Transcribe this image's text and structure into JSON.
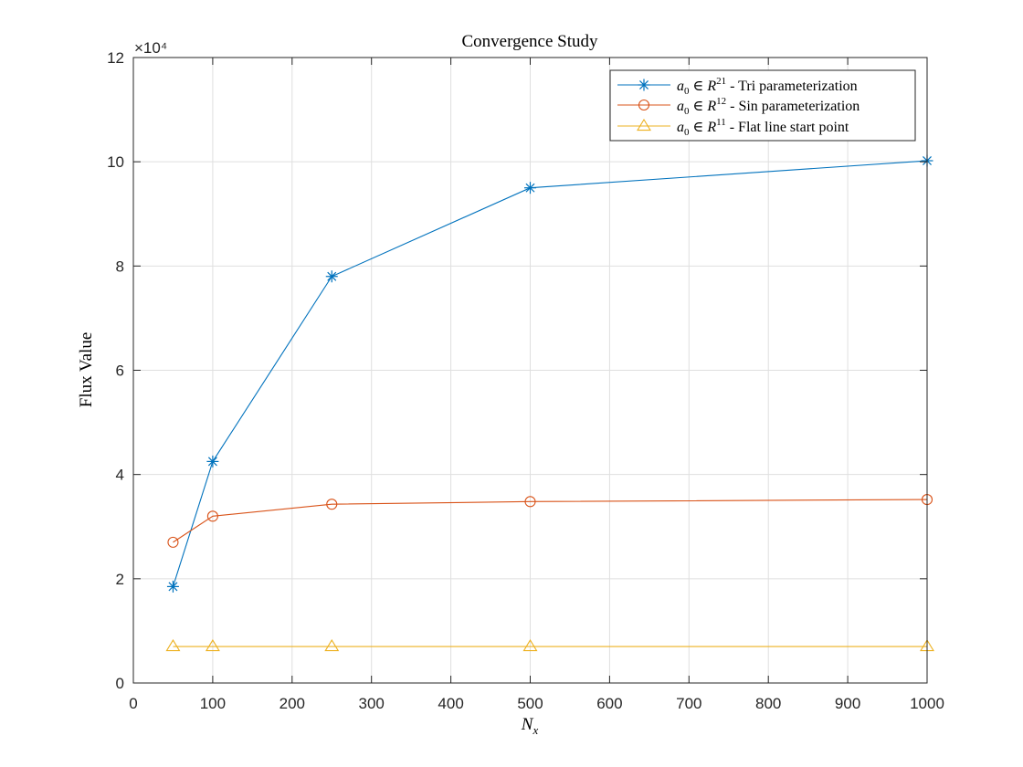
{
  "chart_data": {
    "type": "line",
    "title": "Convergence Study",
    "xlabel": "N_x",
    "ylabel": "Flux Value",
    "xlim": [
      0,
      1000
    ],
    "ylim": [
      0,
      120000
    ],
    "x_ticks": [
      0,
      100,
      200,
      300,
      400,
      500,
      600,
      700,
      800,
      900,
      1000
    ],
    "y_ticks": [
      0,
      20000,
      40000,
      60000,
      80000,
      100000,
      120000
    ],
    "y_tick_labels": [
      "0",
      "2",
      "4",
      "6",
      "8",
      "10",
      "12"
    ],
    "y_exponent_label": "×10⁴",
    "grid": true,
    "legend_position": "top-right",
    "x": [
      50,
      100,
      250,
      500,
      1000
    ],
    "series": [
      {
        "name": "a0 ∈ R21 - Tri parameterization",
        "legend_symbol": "a",
        "legend_sub": "0",
        "legend_set": "R",
        "legend_sup": "21",
        "legend_tail": " - Tri parameterization",
        "marker": "asterisk",
        "color": "#0072BD",
        "values": [
          18500,
          42500,
          78000,
          95000,
          100200
        ]
      },
      {
        "name": "a0 ∈ R12 - Sin parameterization",
        "legend_symbol": "a",
        "legend_sub": "0",
        "legend_set": "R",
        "legend_sup": "12",
        "legend_tail": " - Sin parameterization",
        "marker": "circle",
        "color": "#D95319",
        "values": [
          27000,
          32000,
          34300,
          34800,
          35200
        ]
      },
      {
        "name": "a0 ∈ R11 - Flat line start point",
        "legend_symbol": "a",
        "legend_sub": "0",
        "legend_set": "R",
        "legend_sup": "11",
        "legend_tail": " - Flat line start point",
        "marker": "triangle",
        "color": "#EDB120",
        "values": [
          7000,
          7000,
          7000,
          7000,
          7000
        ]
      }
    ]
  }
}
